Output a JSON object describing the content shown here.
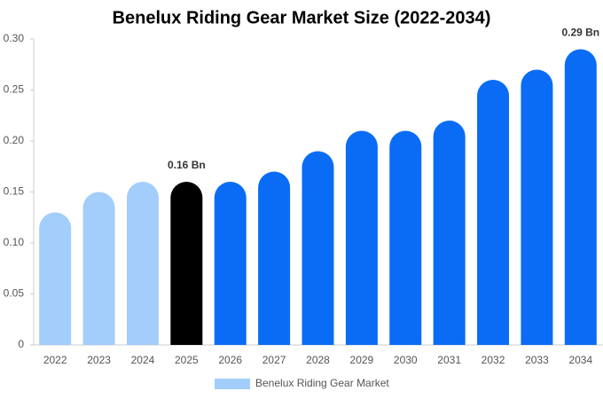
{
  "chart_data": {
    "type": "bar",
    "title": "Benelux Riding Gear Market Size (2022-2034)",
    "categories": [
      "2022",
      "2023",
      "2024",
      "2025",
      "2026",
      "2027",
      "2028",
      "2029",
      "2030",
      "2031",
      "2032",
      "2033",
      "2034"
    ],
    "series": [
      {
        "name": "Benelux Riding Gear Market",
        "color": "#a3cdfb",
        "colors": [
          "#a3cdfb",
          "#a3cdfb",
          "#a3cdfb",
          "#000000",
          "#0a6cf5",
          "#0a6cf5",
          "#0a6cf5",
          "#0a6cf5",
          "#0a6cf5",
          "#0a6cf5",
          "#0a6cf5",
          "#0a6cf5",
          "#0a6cf5"
        ],
        "values": [
          0.13,
          0.15,
          0.16,
          0.16,
          0.16,
          0.17,
          0.19,
          0.21,
          0.21,
          0.22,
          0.26,
          0.27,
          0.29
        ],
        "value_labels": [
          null,
          null,
          null,
          "0.16 Bn",
          null,
          null,
          null,
          null,
          null,
          null,
          null,
          null,
          "0.29 Bn"
        ]
      }
    ],
    "ylim": [
      0,
      0.3
    ],
    "yticks": [
      0,
      0.05,
      {
        "value": 0.1,
        "label": "0.10"
      },
      0.15,
      {
        "value": 0.2,
        "label": "0.20"
      },
      0.25,
      {
        "value": 0.3,
        "label": "0.30"
      }
    ],
    "grid": false
  }
}
